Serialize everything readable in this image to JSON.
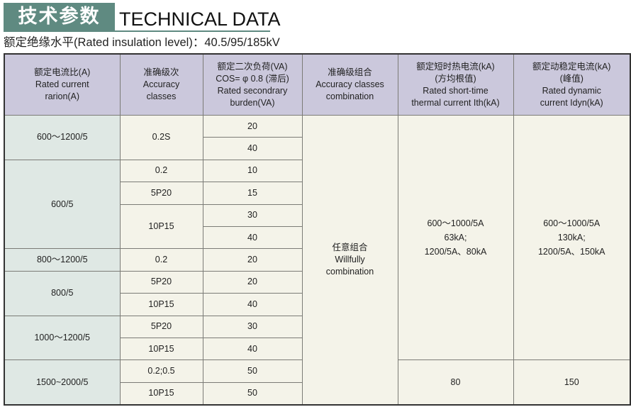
{
  "title": {
    "cn": "技术参数",
    "en": "TECHNICAL DATA"
  },
  "subtitle": "额定绝缘水平(Rated insulation level)：40.5/95/185kV",
  "colors": {
    "title_block": "#5f8a81",
    "header_bg": "#cbc8dc",
    "first_col_bg": "#dfe8e4",
    "cell_bg": "#f4f3e9"
  },
  "headers": [
    [
      "额定电流比(A)",
      "Rated current",
      "rarion(A)"
    ],
    [
      "准确级次",
      "Accuracy",
      "classes"
    ],
    [
      "额定二次负荷(VA)",
      "COS= φ 0.8 (滞后)",
      "Rated secondrary",
      "burden(VA)"
    ],
    [
      "准确级组合",
      "Accuracy classes",
      "combination"
    ],
    [
      "额定短时热电流(kA)",
      "(方均根值)",
      "Rated short-time",
      "thermal current Ith(kA)"
    ],
    [
      "额定动稳定电流(kA)",
      "(峰值)",
      "Rated dynamic",
      "current Idyn(kA)"
    ]
  ],
  "ratios": [
    "600～1200/5",
    "600/5",
    "800～1200/5",
    "800/5",
    "1000～1200/5",
    "1500~2000/5"
  ],
  "classes": [
    "0.2S",
    "0.2",
    "5P20",
    "10P15",
    "0.2",
    "5P20",
    "10P15",
    "5P20",
    "10P15",
    "0.2;0.5",
    "10P15"
  ],
  "burdens": [
    "20",
    "40",
    "10",
    "15",
    "30",
    "40",
    "20",
    "20",
    "40",
    "30",
    "40",
    "50",
    "50"
  ],
  "combination": [
    "任意组合",
    "Willfully",
    "combination"
  ],
  "thermal": [
    "600～1000/5A",
    "63kA;",
    "1200/5A、80kA",
    "80"
  ],
  "dynamic": [
    "600～1000/5A",
    "130kA;",
    "1200/5A、150kA",
    "150"
  ]
}
